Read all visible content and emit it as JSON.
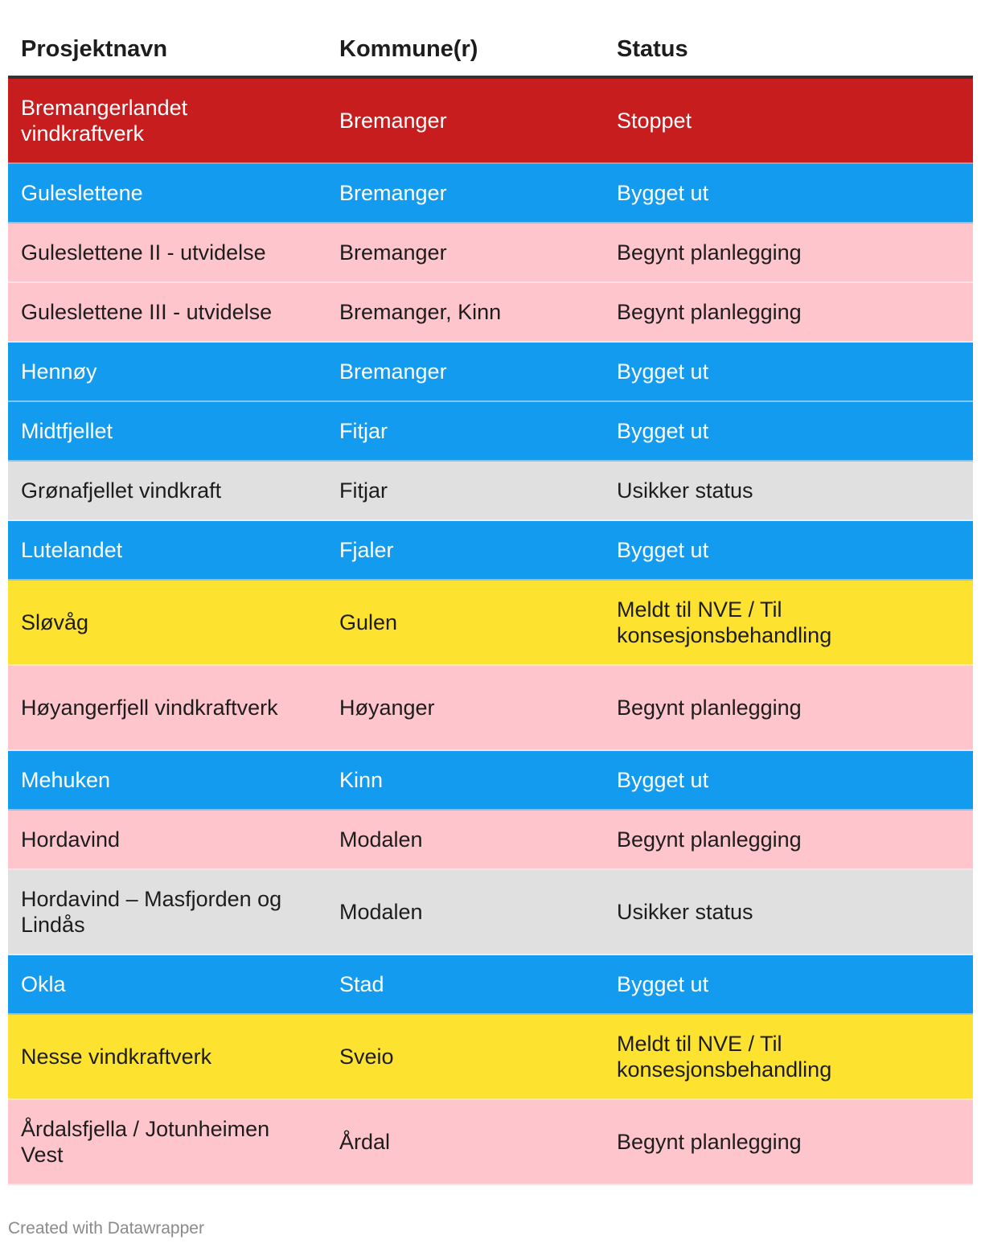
{
  "colors": {
    "stopped": "#c81d1f",
    "built": "#139bef",
    "planning": "#ffc5cc",
    "uncertain": "#e0e0e0",
    "nve": "#fde22f",
    "text_dark": "#1d1d1d",
    "text_light": "#ffffff"
  },
  "chart_data": {
    "type": "table",
    "columns": [
      "Prosjektnavn",
      "Kommune(r)",
      "Status"
    ],
    "rows": [
      {
        "name": "Bremangerlandet vindkraftverk",
        "kommune": "Bremanger",
        "status": "Stoppet",
        "category": "stopped",
        "lines": 2
      },
      {
        "name": "Guleslettene",
        "kommune": "Bremanger",
        "status": "Bygget ut",
        "category": "built",
        "lines": 1
      },
      {
        "name": "Guleslettene II - utvidelse",
        "kommune": "Bremanger",
        "status": "Begynt planlegging",
        "category": "planning",
        "lines": 1
      },
      {
        "name": "Guleslettene III - utvidelse",
        "kommune": "Bremanger, Kinn",
        "status": "Begynt planlegging",
        "category": "planning",
        "lines": 1
      },
      {
        "name": "Hennøy",
        "kommune": "Bremanger",
        "status": "Bygget ut",
        "category": "built",
        "lines": 1
      },
      {
        "name": "Midtfjellet",
        "kommune": "Fitjar",
        "status": "Bygget ut",
        "category": "built",
        "lines": 1
      },
      {
        "name": "Grønafjellet vindkraft",
        "kommune": "Fitjar",
        "status": "Usikker status",
        "category": "uncertain",
        "lines": 1
      },
      {
        "name": "Lutelandet",
        "kommune": "Fjaler",
        "status": "Bygget ut",
        "category": "built",
        "lines": 1
      },
      {
        "name": "Sløvåg",
        "kommune": "Gulen",
        "status": "Meldt til NVE / Til konsesjonsbehandling",
        "category": "nve",
        "lines": 2
      },
      {
        "name": "Høyangerfjell vindkraftverk",
        "kommune": "Høyanger",
        "status": "Begynt planlegging",
        "category": "planning",
        "lines": 2
      },
      {
        "name": "Mehuken",
        "kommune": "Kinn",
        "status": "Bygget ut",
        "category": "built",
        "lines": 1
      },
      {
        "name": "Hordavind",
        "kommune": "Modalen",
        "status": "Begynt planlegging",
        "category": "planning",
        "lines": 1
      },
      {
        "name": "Hordavind – Masfjorden og Lindås",
        "kommune": "Modalen",
        "status": "Usikker status",
        "category": "uncertain",
        "lines": 2
      },
      {
        "name": "Okla",
        "kommune": "Stad",
        "status": "Bygget ut",
        "category": "built",
        "lines": 1
      },
      {
        "name": "Nesse vindkraftverk",
        "kommune": "Sveio",
        "status": "Meldt til NVE / Til konsesjonsbehandling",
        "category": "nve",
        "lines": 2
      },
      {
        "name": "Årdalsfjella / Jotunheimen Vest",
        "kommune": "Årdal",
        "status": "Begynt planlegging",
        "category": "planning",
        "lines": 2
      }
    ]
  },
  "footer": {
    "credit": "Created with Datawrapper"
  }
}
